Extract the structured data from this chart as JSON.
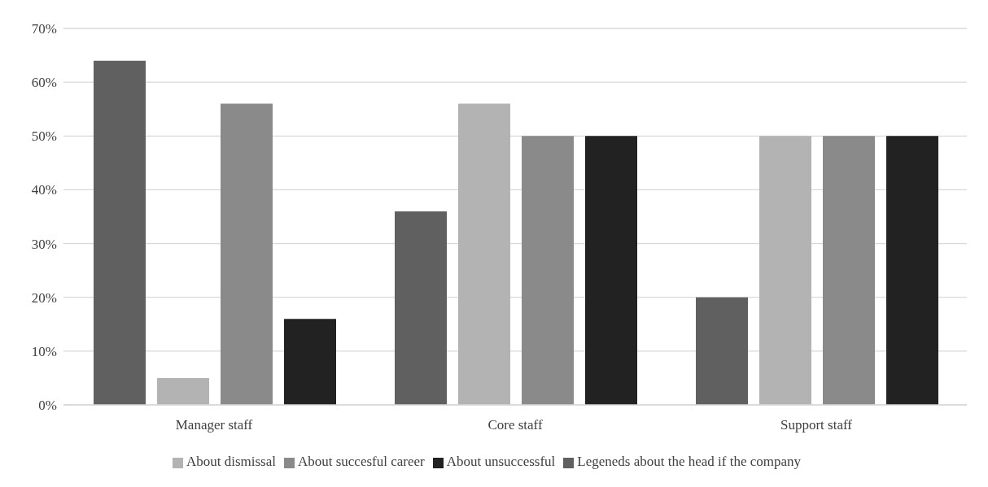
{
  "chart_data": {
    "type": "bar",
    "categories": [
      "Manager staff",
      "Core staff",
      "Support staff"
    ],
    "series": [
      {
        "name": "Legeneds about the head if the company",
        "color": "#606060",
        "values": [
          64,
          36,
          20
        ]
      },
      {
        "name": "About dismissal",
        "color": "#b3b3b3",
        "values": [
          5,
          56,
          50
        ]
      },
      {
        "name": "About succesful career",
        "color": "#8a8a8a",
        "values": [
          56,
          50,
          50
        ]
      },
      {
        "name": "About unsuccessful",
        "color": "#222222",
        "values": [
          16,
          50,
          50
        ]
      }
    ],
    "ylim": [
      0,
      70
    ],
    "yticks": [
      {
        "value": 0,
        "label": "0%"
      },
      {
        "value": 10,
        "label": "10%"
      },
      {
        "value": 20,
        "label": "20%"
      },
      {
        "value": 30,
        "label": "30%"
      },
      {
        "value": 40,
        "label": "40%"
      },
      {
        "value": 50,
        "label": "50%"
      },
      {
        "value": 60,
        "label": "60%"
      },
      {
        "value": 70,
        "label": "70%"
      }
    ],
    "grid": "y",
    "legend": "bottom"
  }
}
